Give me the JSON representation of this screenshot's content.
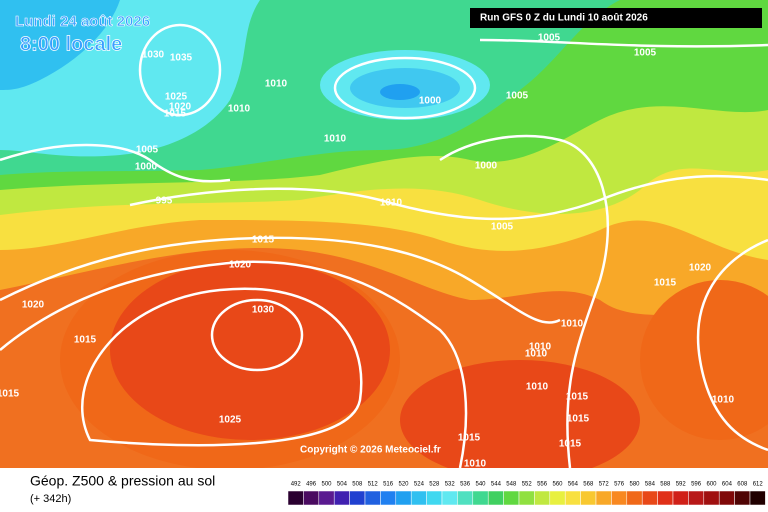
{
  "header": {
    "date": "Lundi 24 août 2026",
    "time": "8:00 locale",
    "run": "Run GFS 0 Z du Lundi 10 août 2026"
  },
  "isobar_labels": [
    "1030",
    "1035",
    "1010",
    "1025",
    "1020",
    "1015",
    "1010",
    "1000",
    "1005",
    "1005",
    "1005",
    "1010",
    "1005",
    "1000",
    "995",
    "1000",
    "1010",
    "1005",
    "1015",
    "1020",
    "1020",
    "1015",
    "1020",
    "1030",
    "1015",
    "1010",
    "1010",
    "1010",
    "1010",
    "1015",
    "1015",
    "1015",
    "1010",
    "1025",
    "1015",
    "1015",
    "1010"
  ],
  "copyright": "Copyright © 2026 Meteociel.fr",
  "legend": {
    "title": "Géop. Z500 & pression au sol",
    "lead": "(+ 342h)",
    "scale": [
      492,
      496,
      500,
      504,
      508,
      512,
      516,
      520,
      524,
      528,
      532,
      536,
      540,
      544,
      548,
      552,
      556,
      560,
      564,
      568,
      572,
      576,
      580,
      584,
      588,
      592,
      596,
      600,
      604,
      608,
      612
    ],
    "colors": [
      "#2a0030",
      "#4a0a60",
      "#5a1a90",
      "#4020b0",
      "#2040d0",
      "#2060e0",
      "#2080f0",
      "#20a0f0",
      "#30c0f0",
      "#40d8f0",
      "#60e8f0",
      "#50e0c0",
      "#40d890",
      "#40d060",
      "#60d840",
      "#90e040",
      "#c0e840",
      "#e8f040",
      "#f8e040",
      "#f8c830",
      "#f8a828",
      "#f88820",
      "#f06818",
      "#e84818",
      "#e03018",
      "#d02018",
      "#b81818",
      "#a01010",
      "#800808",
      "#500404",
      "#200000"
    ]
  }
}
